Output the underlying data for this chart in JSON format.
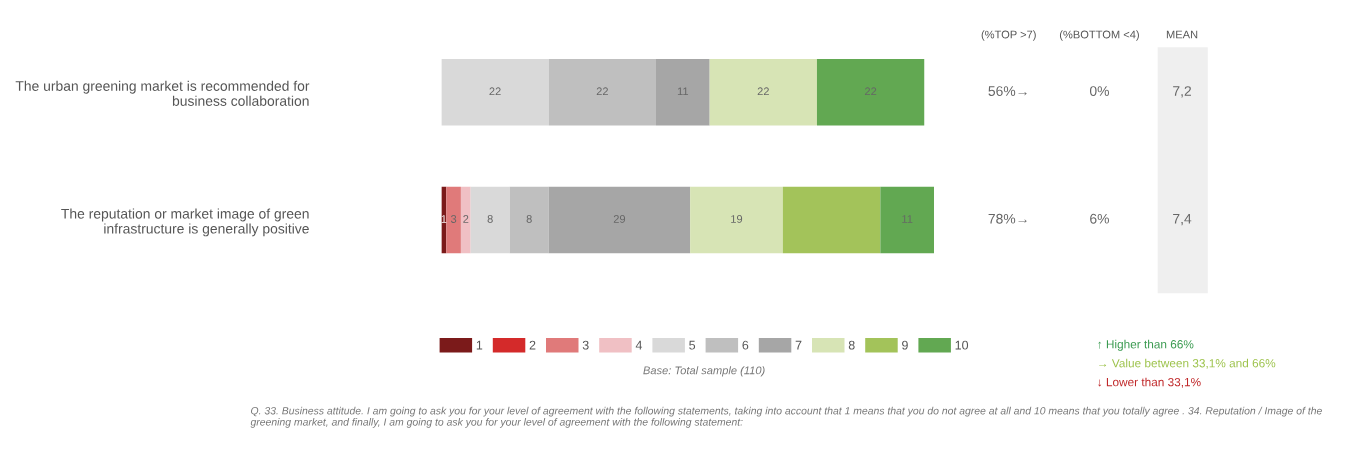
{
  "chart_data": {
    "type": "bar",
    "orientation": "horizontal",
    "stacked": true,
    "legend": "bottom",
    "categories": [
      "The urban greening market is recommended for business collaboration",
      "The reputation or market image of green infrastructure is generally positive"
    ],
    "series": [
      {
        "name": "1",
        "color": "#7b1a1a",
        "values": [
          0,
          1
        ],
        "value_labels": [
          null,
          "1"
        ]
      },
      {
        "name": "2",
        "color": "#d42a2a",
        "values": [
          0,
          0
        ],
        "value_labels": [
          null,
          null
        ]
      },
      {
        "name": "3",
        "color": "#e07a7a",
        "values": [
          0,
          3
        ],
        "value_labels": [
          null,
          "3"
        ]
      },
      {
        "name": "4",
        "color": "#f0c0c4",
        "values": [
          0,
          2
        ],
        "value_labels": [
          null,
          "2"
        ]
      },
      {
        "name": "5",
        "color": "#d9d9d9",
        "values": [
          22,
          8
        ],
        "value_labels": [
          "22",
          "8"
        ]
      },
      {
        "name": "6",
        "color": "#bfbfbf",
        "values": [
          22,
          8
        ],
        "value_labels": [
          "22",
          "8"
        ]
      },
      {
        "name": "7",
        "color": "#a6a6a6",
        "values": [
          11,
          29
        ],
        "value_labels": [
          "11",
          "29"
        ]
      },
      {
        "name": "8",
        "color": "#d7e4b5",
        "values": [
          22,
          19
        ],
        "value_labels": [
          "22",
          "19"
        ]
      },
      {
        "name": "9",
        "color": "#a3c35a",
        "values": [
          0,
          20
        ],
        "value_labels": [
          null,
          null
        ]
      },
      {
        "name": "10",
        "color": "#62a852",
        "values": [
          22,
          11
        ],
        "value_labels": [
          "22",
          "11"
        ]
      }
    ],
    "annotations": [
      "(%TOP >7)",
      "(%BOTTOM <4)",
      "MEAN",
      "56%→",
      "0%",
      "7,2",
      "78%→",
      "6%",
      "7,4",
      "↑ Higher than 66%",
      "→ Value between 33,1% and 66%",
      "↓ Lower than 33,1%",
      "Base: Total sample (110)",
      "Q. 33. Business attitude. I am going to ask you for your level of agreement with the following statements, taking into account that 1 means that you do not agree at all and 10 means that you totally agree . 34. Reputation / Image of the greening market, and finally, I am going to ask you for your level of agreement with the following statement:"
    ]
  }
}
